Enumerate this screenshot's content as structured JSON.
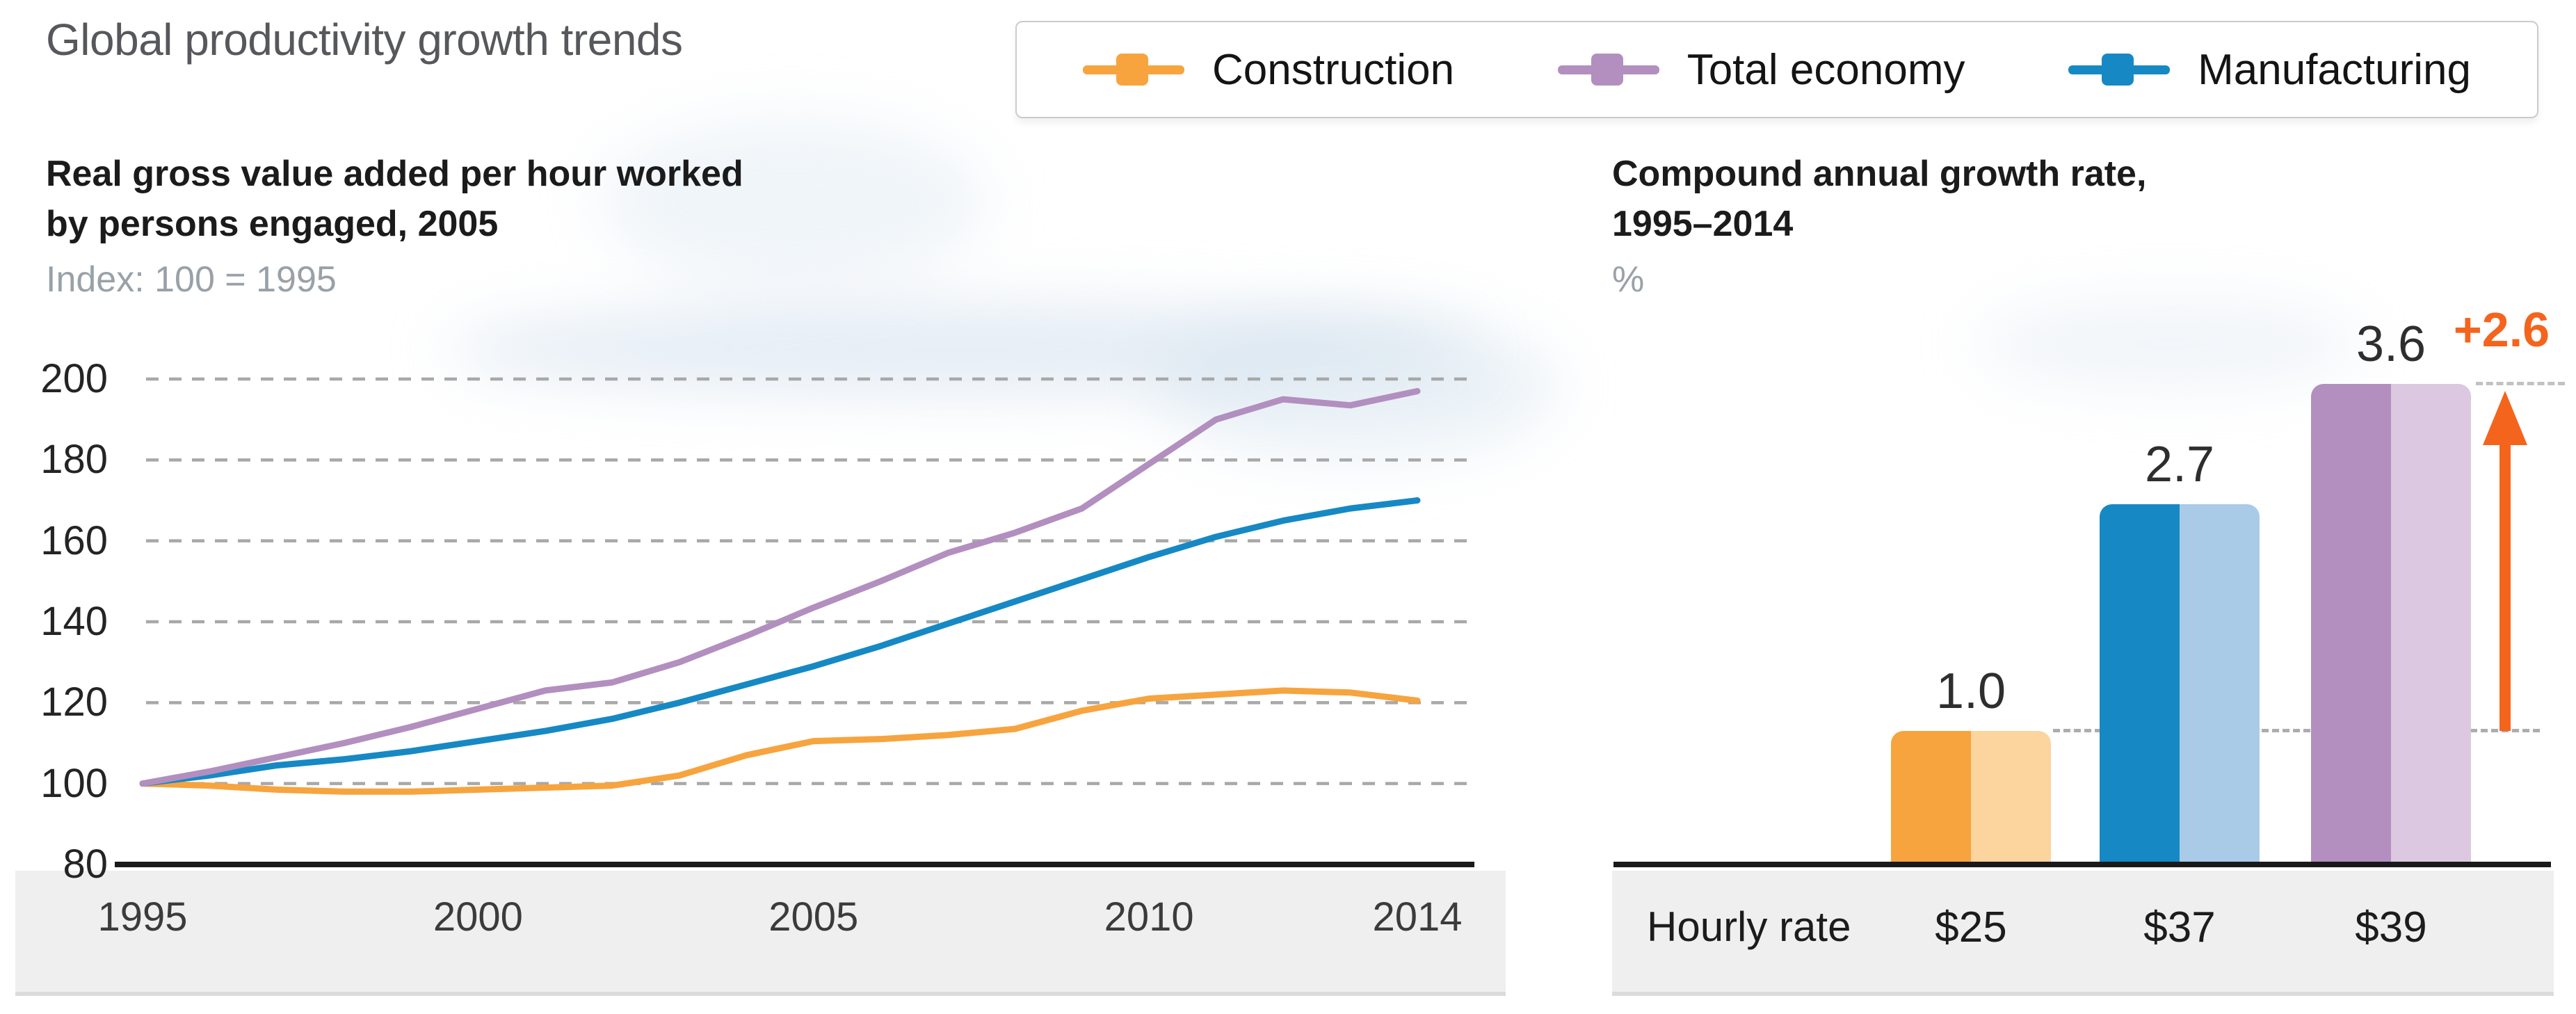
{
  "page": {
    "title": "Global productivity growth trends",
    "background": "#ffffff"
  },
  "legend": {
    "position": "top-right",
    "items": [
      {
        "label": "Construction",
        "color": "#F7A43E"
      },
      {
        "label": "Total economy",
        "color": "#B28FBF"
      },
      {
        "label": "Manufacturing",
        "color": "#1689C4"
      }
    ]
  },
  "colors": {
    "accent_orange": "#F7A43E",
    "accent_purple": "#B28FBF",
    "accent_blue": "#1689C4",
    "arrow_orange": "#F4641D",
    "axis_black": "#1A1A1A",
    "grid_gray": "#A8A8A8",
    "band_gray": "#EFEFEF"
  },
  "chart_data": [
    {
      "type": "line",
      "title": "Real gross value added per hour worked by persons engaged, 2005",
      "title_lines": [
        "Real gross value added per hour worked",
        "by persons engaged, 2005"
      ],
      "index_label": "Index: 100 = 1995",
      "x": [
        1995,
        1996,
        1997,
        1998,
        1999,
        2000,
        2001,
        2002,
        2003,
        2004,
        2005,
        2006,
        2007,
        2008,
        2009,
        2010,
        2011,
        2012,
        2013,
        2014
      ],
      "xticks": [
        "1995",
        "2000",
        "2005",
        "2010",
        "2014"
      ],
      "ylim": [
        80,
        200
      ],
      "yticks": [
        200,
        180,
        160,
        140,
        120,
        100,
        80
      ],
      "grid": "horizontal dashed",
      "legend_position": "top-right shared",
      "series": [
        {
          "name": "Construction",
          "color": "#F7A43E",
          "values": [
            100,
            99.5,
            98.5,
            98,
            98,
            98.5,
            99,
            99.5,
            102,
            107,
            110.5,
            111,
            112,
            113.5,
            118,
            121,
            122,
            123,
            122.5,
            120.5
          ]
        },
        {
          "name": "Manufacturing",
          "color": "#1689C4",
          "values": [
            100,
            102,
            104.5,
            106,
            108,
            110.5,
            113,
            116,
            120,
            124.5,
            129,
            134,
            139.5,
            145,
            150.5,
            156,
            161,
            165,
            168,
            170
          ]
        },
        {
          "name": "Total economy",
          "color": "#B28FBF",
          "values": [
            100,
            103,
            106.5,
            110,
            114,
            118.5,
            123,
            125,
            130,
            136.5,
            143.5,
            150,
            157,
            162,
            168,
            179,
            190,
            195,
            193.5,
            197
          ]
        }
      ]
    },
    {
      "type": "bar",
      "title": "Compound annual growth rate, 1995–2014",
      "title_lines": [
        "Compound annual growth rate,",
        "1995–2014"
      ],
      "unit_label": "%",
      "categories": [
        "Construction",
        "Manufacturing",
        "Total economy"
      ],
      "values": [
        1.0,
        2.7,
        3.6
      ],
      "value_labels": [
        "1.0",
        "2.7",
        "3.6"
      ],
      "bar_colors": [
        {
          "dark": "#F7A43E",
          "light": "#FBD49E"
        },
        {
          "dark": "#1689C4",
          "light": "#A9CBE7"
        },
        {
          "dark": "#B28FBF",
          "light": "#DCC8E0"
        }
      ],
      "annotation": {
        "label": "+2.6",
        "color": "#F4641D",
        "from": 1.0,
        "to": 3.6
      },
      "footer": {
        "label": "Hourly rate",
        "values": [
          "$25",
          "$37",
          "$39"
        ]
      }
    }
  ]
}
